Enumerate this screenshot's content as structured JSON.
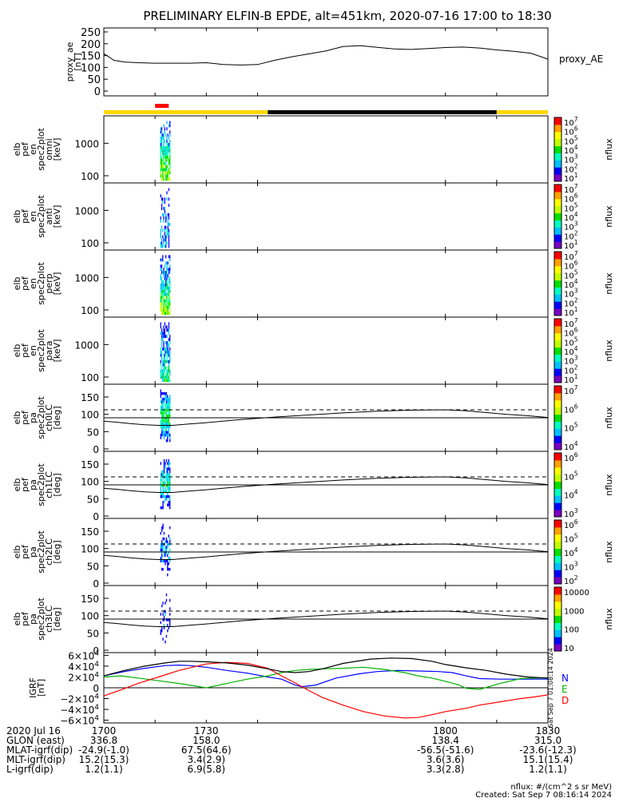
{
  "title": "PRELIMINARY ELFIN-B EPDE, alt=451km, 2020-07-16 17:00 to 18:30",
  "colors": {
    "nflux_colormap": [
      "#ffffff",
      "#7a00c0",
      "#0000ff",
      "#00c0ff",
      "#00ffc0",
      "#00e000",
      "#c0ff00",
      "#ffff00",
      "#ffa000",
      "#ff0000"
    ],
    "bar_yellow": "#ffd700",
    "bar_black": "#000000",
    "bar_red": "#ff0000",
    "grf_x": "#ff0000",
    "grf_y": "#0000ff",
    "grf_z": "#00b000",
    "grf_total": "#000000"
  },
  "science_bar": {
    "segments": [
      {
        "from": 1700,
        "to": 1748,
        "color": "yellow"
      },
      {
        "from": 1748,
        "to": 1815,
        "color": "black"
      },
      {
        "from": 1815,
        "to": 1830,
        "color": "yellow"
      }
    ],
    "red_marker": {
      "from": 1715,
      "to": 1719
    }
  },
  "panels": [
    {
      "name": "proxy_ae",
      "ylabel": [
        "proxy_ae",
        "[nT]"
      ],
      "right_label": "proxy_AE",
      "type": "line",
      "ylim": [
        0,
        260
      ],
      "yticks": [
        "0",
        "50",
        "100",
        "150",
        "200",
        "250"
      ]
    },
    {
      "name": "en-omni",
      "ylabel": [
        "elb",
        "pef",
        "en",
        "spec2plot",
        "omni",
        "[keV]"
      ],
      "type": "spectrogram",
      "ylog": true,
      "yticks": [
        "1000",
        "100"
      ],
      "colorbar": {
        "label": "nflux",
        "ticks": [
          "10^7",
          "10^6",
          "10^5",
          "10^4",
          "10^3",
          "10^2",
          "10^1"
        ]
      }
    },
    {
      "name": "en-anti",
      "ylabel": [
        "elb",
        "pef",
        "en",
        "spec2plot",
        "anti",
        "[keV]"
      ],
      "type": "spectrogram",
      "ylog": true,
      "yticks": [
        "1000",
        "100"
      ],
      "colorbar": {
        "label": "nflux",
        "ticks": [
          "10^7",
          "10^6",
          "10^5",
          "10^4",
          "10^3",
          "10^2",
          "10^1"
        ]
      }
    },
    {
      "name": "en-perp",
      "ylabel": [
        "elb",
        "pef",
        "en",
        "spec2plot",
        "perp",
        "[keV]"
      ],
      "type": "spectrogram",
      "ylog": true,
      "yticks": [
        "1000",
        "100"
      ],
      "colorbar": {
        "label": "nflux",
        "ticks": [
          "10^7",
          "10^6",
          "10^5",
          "10^4",
          "10^3",
          "10^2",
          "10^1"
        ]
      }
    },
    {
      "name": "en-para",
      "ylabel": [
        "elb",
        "pef",
        "en",
        "spec2plot",
        "para",
        "[keV]"
      ],
      "type": "spectrogram",
      "ylog": true,
      "yticks": [
        "1000",
        "100"
      ],
      "colorbar": {
        "label": "nflux",
        "ticks": [
          "10^7",
          "10^6",
          "10^5",
          "10^4",
          "10^3",
          "10^2",
          "10^1"
        ]
      }
    },
    {
      "name": "pa-ch0",
      "ylabel": [
        "elb",
        "pef",
        "pa",
        "spec2plot",
        "ch0LC",
        "[deg]"
      ],
      "type": "pitch",
      "ylim": [
        0,
        180
      ],
      "yticks": [
        "0",
        "50",
        "100",
        "150"
      ],
      "colorbar": {
        "label": "nflux",
        "ticks": [
          "10^7",
          "10^6",
          "10^5",
          "10^4"
        ]
      }
    },
    {
      "name": "pa-ch1",
      "ylabel": [
        "elb",
        "pef",
        "pa",
        "spec2plot",
        "ch1LC",
        "[deg]"
      ],
      "type": "pitch",
      "ylim": [
        0,
        180
      ],
      "yticks": [
        "0",
        "50",
        "100",
        "150"
      ],
      "colorbar": {
        "label": "nflux",
        "ticks": [
          "10^6",
          "10^5",
          "10^4",
          "10^3"
        ]
      }
    },
    {
      "name": "pa-ch2",
      "ylabel": [
        "elb",
        "pef",
        "pa",
        "spec2plot",
        "ch2LC",
        "[deg]"
      ],
      "type": "pitch",
      "ylim": [
        0,
        180
      ],
      "yticks": [
        "0",
        "50",
        "100",
        "150"
      ],
      "colorbar": {
        "label": "nflux",
        "ticks": [
          "10^6",
          "10^5",
          "10^4",
          "10^3",
          "10^2"
        ]
      }
    },
    {
      "name": "pa-ch3",
      "ylabel": [
        "elb",
        "pef",
        "pa",
        "spec2plot",
        "ch3LC",
        "[deg]"
      ],
      "type": "pitch",
      "ylim": [
        0,
        180
      ],
      "yticks": [
        "0",
        "50",
        "100",
        "150"
      ],
      "colorbar": {
        "label": "nflux",
        "ticks": [
          "10000",
          "1000",
          "100",
          "10"
        ]
      }
    },
    {
      "name": "grf",
      "ylabel": [
        "IGRF",
        "[nT]"
      ],
      "type": "lines",
      "ylim": [
        -65000,
        65000
      ],
      "yticks": [
        "6×10^4",
        "4×10^4",
        "2×10^4",
        "0",
        "−2×10^4",
        "−4×10^4",
        "−6×10^4"
      ],
      "yvalues": [
        60000,
        40000,
        20000,
        0,
        -20000,
        -40000,
        -60000
      ],
      "legend": [
        "N",
        "E",
        "D"
      ],
      "stamp": "Sat Sep  7 01:08:14 2024"
    }
  ],
  "chart_data": {
    "type": "line",
    "title": "PRELIMINARY ELFIN-B EPDE, alt=451km, 2020-07-16 17:00 to 18:30",
    "xlim": [
      1700,
      1830
    ],
    "xticks": [
      "1700",
      "1730",
      "1800",
      "1830"
    ],
    "series": [
      {
        "name": "proxy_AE",
        "x": [
          1700,
          1703,
          1706,
          1710,
          1715,
          1720,
          1725,
          1730,
          1735,
          1740,
          1745,
          1750,
          1755,
          1760,
          1765,
          1770,
          1775,
          1780,
          1785,
          1790,
          1795,
          1800,
          1805,
          1810,
          1815,
          1820,
          1825,
          1830
        ],
        "y": [
          158,
          130,
          123,
          120,
          118,
          118,
          118,
          120,
          112,
          110,
          112,
          130,
          145,
          157,
          170,
          188,
          192,
          185,
          178,
          176,
          180,
          184,
          186,
          182,
          174,
          168,
          160,
          135
        ]
      }
    ],
    "grf_series": [
      {
        "name": "N",
        "x": [
          1700,
          1706,
          1712,
          1718,
          1722,
          1725,
          1730,
          1736,
          1742,
          1748,
          1752,
          1756,
          1758,
          1762,
          1768,
          1775,
          1780,
          1786,
          1792,
          1798,
          1802,
          1806,
          1810,
          1816,
          1822,
          1826,
          1830
        ],
        "y": [
          22000,
          30000,
          36000,
          41000,
          42000,
          41000,
          38000,
          32000,
          27000,
          20000,
          16000,
          5000,
          2000,
          5000,
          18000,
          26000,
          30000,
          32000,
          31000,
          30000,
          28000,
          22000,
          17000,
          16000,
          16000,
          16000,
          16000
        ]
      },
      {
        "name": "E",
        "x": [
          1700,
          1705,
          1710,
          1716,
          1722,
          1730,
          1736,
          1742,
          1748,
          1752,
          1756,
          1760,
          1764,
          1770,
          1776,
          1782,
          1788,
          1792,
          1796,
          1800,
          1804,
          1806,
          1810,
          1816,
          1822,
          1826,
          1830
        ],
        "y": [
          20000,
          22000,
          18000,
          13000,
          8000,
          0,
          8000,
          16000,
          22000,
          28000,
          32000,
          34000,
          35000,
          36000,
          38000,
          34000,
          28000,
          22000,
          18000,
          12000,
          5000,
          -1000,
          -3000,
          8000,
          17000,
          18000,
          18000
        ]
      },
      {
        "name": "D",
        "x": [
          1700,
          1705,
          1710,
          1716,
          1722,
          1730,
          1736,
          1742,
          1748,
          1752,
          1756,
          1760,
          1764,
          1770,
          1776,
          1782,
          1788,
          1792,
          1796,
          1800,
          1806,
          1810,
          1816,
          1822,
          1826,
          1830
        ],
        "y": [
          -15000,
          -4000,
          8000,
          20000,
          32000,
          44000,
          47000,
          45000,
          36000,
          22000,
          9000,
          -5000,
          -18000,
          -32000,
          -44000,
          -52000,
          -56000,
          -55000,
          -50000,
          -44000,
          -38000,
          -32000,
          -26000,
          -20000,
          -17000,
          -13000
        ]
      },
      {
        "name": "total",
        "x": [
          1700,
          1706,
          1712,
          1718,
          1722,
          1725,
          1730,
          1736,
          1742,
          1748,
          1752,
          1756,
          1760,
          1764,
          1770,
          1778,
          1784,
          1790,
          1796,
          1800,
          1806,
          1812,
          1818,
          1824,
          1830
        ],
        "y": [
          22000,
          32000,
          40000,
          46000,
          49000,
          49000,
          48000,
          46000,
          42000,
          35000,
          30000,
          28000,
          30000,
          35000,
          45000,
          53000,
          55000,
          54000,
          49000,
          43000,
          37000,
          32000,
          25000,
          20000,
          18000
        ]
      }
    ],
    "pitch_reference": {
      "dashed_y": 113,
      "solid": {
        "x": [
          1700,
          1704,
          1708,
          1712,
          1716,
          1720,
          1725,
          1730,
          1740,
          1750,
          1760,
          1770,
          1780,
          1790,
          1800,
          1806,
          1812,
          1818,
          1824,
          1830
        ],
        "y": [
          80,
          77,
          73,
          70,
          68,
          68,
          72,
          76,
          85,
          92,
          98,
          104,
          109,
          112,
          113,
          110,
          105,
          100,
          96,
          91
        ]
      }
    }
  },
  "footer": {
    "rows": [
      {
        "label": "2020 Jul 16",
        "values": [
          "1700",
          "1730",
          "1800",
          "1830"
        ]
      },
      {
        "label": "GLON (east)",
        "values": [
          "336.8",
          "158.0",
          "138.4",
          "315.0"
        ]
      },
      {
        "label": "MLAT-igrf(dip)",
        "values": [
          "-24.9(-1.0)",
          "67.5(64.6)",
          "-56.5(-51.6)",
          "-23.6(-12.3)"
        ]
      },
      {
        "label": "MLT-igrf(dip)",
        "values": [
          "15.2(15.3)",
          "3.4(2.9)",
          "3.6(3.6)",
          "15.1(15.4)"
        ]
      },
      {
        "label": "L-igrf(dip)",
        "values": [
          "1.2(1.1)",
          "6.9(5.8)",
          "3.3(2.8)",
          "1.2(1.1)"
        ]
      }
    ],
    "units_note": "nflux: #/(cm^2 s sr MeV)",
    "created": "Created: Sat Sep  7 08:16:14 2024"
  }
}
